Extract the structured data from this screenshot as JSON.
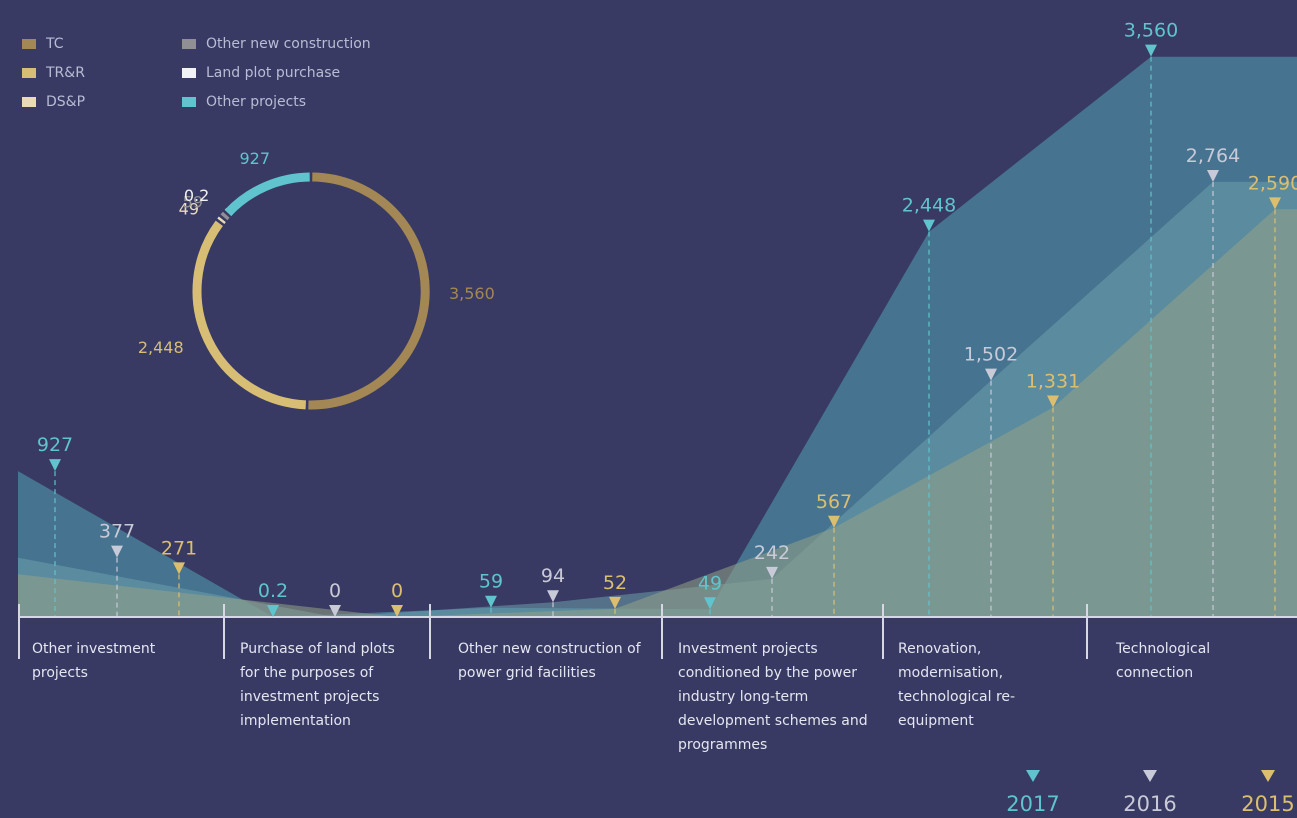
{
  "legend": {
    "items": [
      {
        "label": "TC",
        "color": "#a38754"
      },
      {
        "label": "TR&R",
        "color": "#d7be74"
      },
      {
        "label": "DS&P",
        "color": "#e8dbb5"
      },
      {
        "label": "Other new construction",
        "color": "#8f8f94"
      },
      {
        "label": "Land plot purchase",
        "color": "#f2f2f4"
      },
      {
        "label": "Other projects",
        "color": "#5fc4ce"
      }
    ]
  },
  "years": [
    {
      "label": "2017",
      "color": "#5fc4ce"
    },
    {
      "label": "2016",
      "color": "#c9cad8"
    },
    {
      "label": "2015",
      "color": "#dcbf6e"
    }
  ],
  "chart_data": [
    {
      "type": "pie",
      "variant": "donut",
      "slices": [
        {
          "series": "TC",
          "value": 3560,
          "label": "3,560",
          "color": "#a38754"
        },
        {
          "series": "TR&R",
          "value": 2448,
          "label": "2,448",
          "color": "#d7be74"
        },
        {
          "series": "DS&P",
          "value": 49,
          "label": "49",
          "color": "#e8dbb5"
        },
        {
          "series": "Other new construction",
          "value": 59,
          "label": "59",
          "color": "#8f8f94"
        },
        {
          "series": "Land plot purchase",
          "value": 0.2,
          "label": "0.2",
          "color": "#f2f2f4"
        },
        {
          "series": "Other projects",
          "value": 927,
          "label": "927",
          "color": "#5fc4ce"
        }
      ]
    },
    {
      "type": "area",
      "categories": [
        "Other investment projects",
        "Purchase of land plots for the purposes of investment projects implementation",
        "Other new construction of power grid facilities",
        "Investment projects conditioned by the power industry long-term development schemes and programmes",
        "Renovation, modernisation, technological re-equipment",
        "Technological connection"
      ],
      "series": [
        {
          "name": "2017",
          "color": "#5fc4ce",
          "values": [
            927,
            0.2,
            59,
            49,
            2448,
            3560
          ],
          "labels": [
            "927",
            "0.2",
            "59",
            "49",
            "2,448",
            "3,560"
          ]
        },
        {
          "name": "2016",
          "color": "#c9cad8",
          "values": [
            377,
            0,
            94,
            242,
            1502,
            2764
          ],
          "labels": [
            "377",
            "0",
            "94",
            "242",
            "1,502",
            "2,764"
          ]
        },
        {
          "name": "2015",
          "color": "#dcbf6e",
          "values": [
            271,
            0,
            52,
            567,
            1331,
            2590
          ],
          "labels": [
            "271",
            "0",
            "52",
            "567",
            "1,331",
            "2,590"
          ]
        }
      ]
    }
  ]
}
